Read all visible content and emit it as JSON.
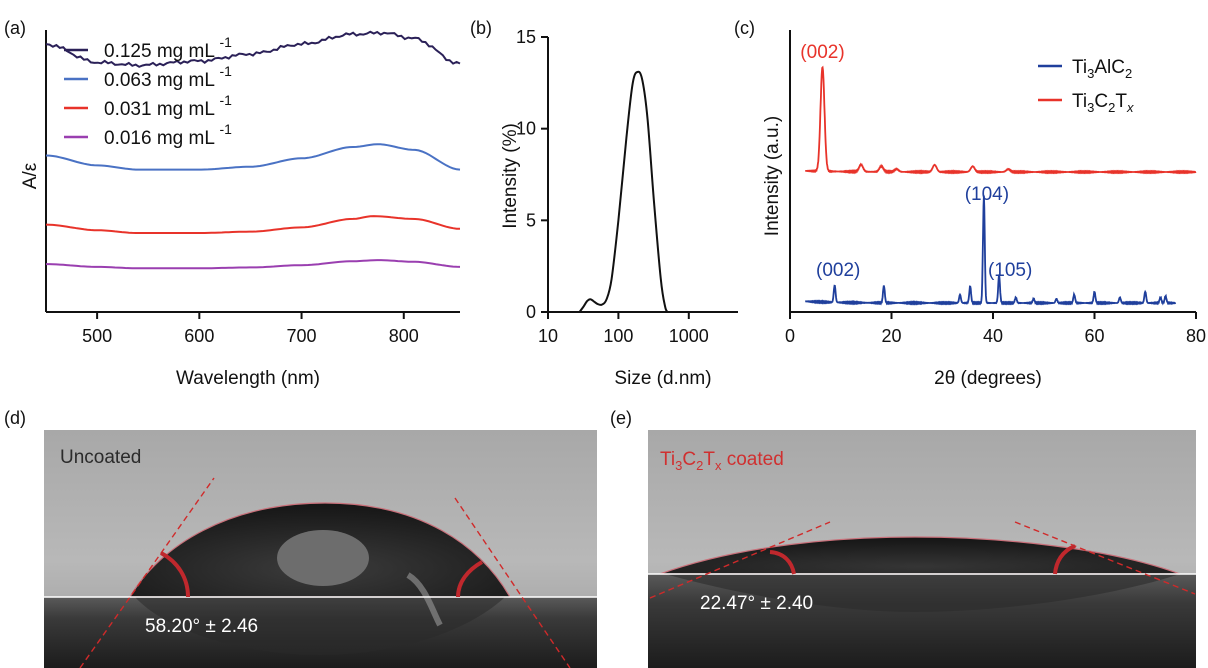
{
  "panels": {
    "a": {
      "letter": "(a)"
    },
    "b": {
      "letter": "(b)"
    },
    "c": {
      "letter": "(c)"
    },
    "d": {
      "letter": "(d)",
      "caption": "Uncoated",
      "angle_label": "58.20° ± 2.46"
    },
    "e": {
      "letter": "(e)",
      "caption_prefix": "Ti",
      "caption_sub1": "3",
      "caption_mid": "C",
      "caption_sub2": "2",
      "caption_t": "T",
      "caption_sub3": "x",
      "caption_suffix": " coated",
      "angle_label": "22.47° ± 2.40"
    }
  },
  "colors": {
    "s0125": "#2b2158",
    "s0063": "#4a72c4",
    "s0031": "#e8332a",
    "s0016": "#9a3fb0",
    "ti3alc2": "#1f3f9c",
    "ti3c2tx": "#e8332a",
    "dls": "#111111",
    "angle_text": "#c0282d"
  },
  "chart_data": [
    {
      "type": "line",
      "panel": "a",
      "xlabel": "Wavelength (nm)",
      "ylabel": "A/ε",
      "xlim": [
        450,
        855
      ],
      "xticks": [
        500,
        600,
        700,
        800
      ],
      "legend_position": "top-left",
      "series": [
        {
          "name": "0.125 mg mL",
          "sup": "-1",
          "x": [
            450,
            500,
            540,
            600,
            650,
            700,
            750,
            780,
            810,
            855
          ],
          "y": [
            0.95,
            0.885,
            0.875,
            0.89,
            0.915,
            0.95,
            0.985,
            0.99,
            0.97,
            0.88
          ]
        },
        {
          "name": "0.063 mg mL",
          "sup": "-1",
          "x": [
            450,
            500,
            540,
            600,
            650,
            700,
            750,
            775,
            810,
            855
          ],
          "y": [
            0.555,
            0.52,
            0.505,
            0.505,
            0.515,
            0.545,
            0.585,
            0.595,
            0.575,
            0.505
          ]
        },
        {
          "name": "0.031 mg mL",
          "sup": "-1",
          "x": [
            450,
            500,
            540,
            600,
            650,
            700,
            750,
            770,
            810,
            855
          ],
          "y": [
            0.31,
            0.29,
            0.28,
            0.28,
            0.285,
            0.3,
            0.33,
            0.34,
            0.33,
            0.295
          ]
        },
        {
          "name": "0.016 mg mL",
          "sup": "-1",
          "x": [
            450,
            500,
            540,
            600,
            650,
            700,
            750,
            775,
            810,
            855
          ],
          "y": [
            0.17,
            0.16,
            0.155,
            0.155,
            0.158,
            0.166,
            0.18,
            0.184,
            0.178,
            0.16
          ]
        }
      ]
    },
    {
      "type": "line",
      "panel": "b",
      "xlabel": "Size (d.nm)",
      "ylabel": "Intensity (%)",
      "xscale": "log",
      "xlim": [
        10,
        5000
      ],
      "ylim": [
        0,
        15
      ],
      "xtick_labels": [
        "10",
        "100",
        "1000"
      ],
      "xticks": [
        10,
        100,
        1000
      ],
      "yticks": [
        0,
        5,
        10,
        15
      ],
      "series": [
        {
          "name": "",
          "x": [
            28,
            32,
            36,
            40,
            44,
            50,
            58,
            68,
            80,
            100,
            130,
            160,
            190,
            220,
            260,
            320,
            400,
            460,
            500
          ],
          "y": [
            0,
            0.3,
            0.6,
            0.7,
            0.6,
            0.45,
            0.4,
            0.7,
            1.8,
            5.0,
            9.5,
            12.5,
            13.1,
            12.6,
            10.5,
            6.0,
            1.8,
            0.3,
            0
          ]
        }
      ]
    },
    {
      "type": "line",
      "panel": "c",
      "xlabel": "2θ (degrees)",
      "ylabel": "Intensity (a.u.)",
      "xlim": [
        0,
        80
      ],
      "xticks": [
        0,
        20,
        40,
        60,
        80
      ],
      "legend_position": "top-right",
      "annotations": [
        {
          "text": "(002)",
          "series": "Ti3C2Tx",
          "x": 6.4
        },
        {
          "text": "(002)",
          "series": "Ti3AlC2",
          "x": 9.5
        },
        {
          "text": "(104)",
          "series": "Ti3AlC2",
          "x": 38.8
        },
        {
          "text": "(105)",
          "series": "Ti3AlC2",
          "x": 41.8
        }
      ],
      "series": [
        {
          "name_main": "Ti",
          "name_sub1": "3",
          "name_mid": "AlC",
          "name_sub2": "2",
          "name_end": "",
          "name_sub3": "",
          "peaks": [
            [
              8.8,
              0.06
            ],
            [
              18.5,
              0.06
            ],
            [
              33.5,
              0.03
            ],
            [
              35.5,
              0.06
            ],
            [
              38.2,
              0.38
            ],
            [
              41.2,
              0.1
            ],
            [
              44.5,
              0.02
            ],
            [
              48,
              0.015
            ],
            [
              52.5,
              0.015
            ],
            [
              56,
              0.03
            ],
            [
              60,
              0.04
            ],
            [
              65,
              0.02
            ],
            [
              70,
              0.04
            ],
            [
              73,
              0.02
            ],
            [
              74,
              0.025
            ]
          ]
        },
        {
          "name_main": "Ti",
          "name_sub1": "3",
          "name_mid": "C",
          "name_sub2": "2",
          "name_end": "T",
          "name_sub3": "x",
          "peaks": [
            [
              6.4,
              0.37
            ],
            [
              14,
              0.025
            ],
            [
              18,
              0.02
            ],
            [
              21,
              0.01
            ],
            [
              28.5,
              0.025
            ],
            [
              36,
              0.02
            ],
            [
              43,
              0.01
            ]
          ]
        }
      ]
    }
  ]
}
